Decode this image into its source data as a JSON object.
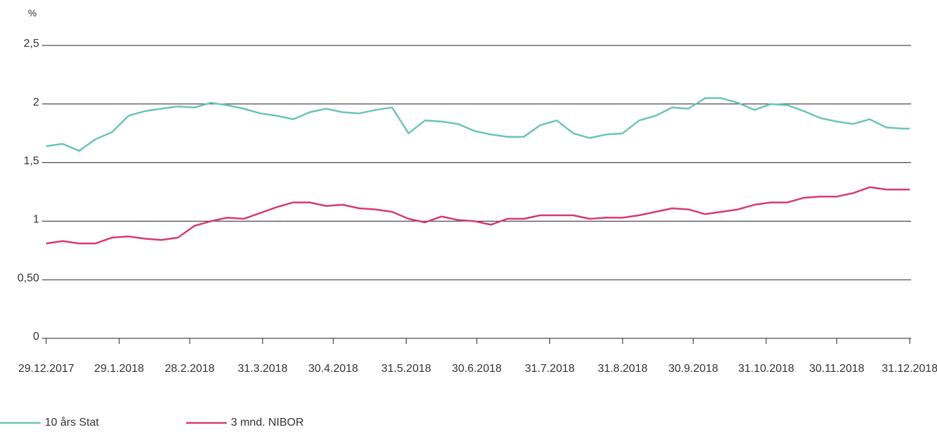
{
  "chart_data": {
    "type": "line",
    "ylabel": "%",
    "x": [
      "2017-12-29",
      "2018-01-05",
      "2018-01-12",
      "2018-01-19",
      "2018-01-26",
      "2018-02-02",
      "2018-02-09",
      "2018-02-16",
      "2018-02-23",
      "2018-03-02",
      "2018-03-09",
      "2018-03-16",
      "2018-03-23",
      "2018-03-30",
      "2018-04-06",
      "2018-04-13",
      "2018-04-20",
      "2018-04-27",
      "2018-05-04",
      "2018-05-11",
      "2018-05-18",
      "2018-05-25",
      "2018-06-01",
      "2018-06-08",
      "2018-06-15",
      "2018-06-22",
      "2018-06-29",
      "2018-07-06",
      "2018-07-13",
      "2018-07-20",
      "2018-07-27",
      "2018-08-03",
      "2018-08-10",
      "2018-08-17",
      "2018-08-24",
      "2018-08-31",
      "2018-09-07",
      "2018-09-14",
      "2018-09-21",
      "2018-09-28",
      "2018-10-05",
      "2018-10-12",
      "2018-10-19",
      "2018-10-26",
      "2018-11-02",
      "2018-11-09",
      "2018-11-16",
      "2018-11-23",
      "2018-11-30",
      "2018-12-07",
      "2018-12-14",
      "2018-12-21",
      "2018-12-28",
      "2018-12-31"
    ],
    "series": [
      {
        "name": "10 års Stat",
        "color": "#6cc4b7",
        "values": [
          1.64,
          1.66,
          1.6,
          1.7,
          1.76,
          1.9,
          1.94,
          1.96,
          1.98,
          1.97,
          2.01,
          1.99,
          1.96,
          1.92,
          1.9,
          1.87,
          1.93,
          1.96,
          1.93,
          1.92,
          1.95,
          1.97,
          1.75,
          1.86,
          1.85,
          1.83,
          1.77,
          1.74,
          1.72,
          1.72,
          1.82,
          1.86,
          1.75,
          1.71,
          1.74,
          1.75,
          1.86,
          1.9,
          1.97,
          1.96,
          2.05,
          2.05,
          2.01,
          1.95,
          2.0,
          1.99,
          1.94,
          1.88,
          1.85,
          1.83,
          1.87,
          1.8,
          1.79,
          1.79
        ]
      },
      {
        "name": "3 mnd. NIBOR",
        "color": "#d63a6e",
        "values": [
          0.81,
          0.83,
          0.81,
          0.81,
          0.86,
          0.87,
          0.85,
          0.84,
          0.86,
          0.96,
          1.0,
          1.03,
          1.02,
          1.07,
          1.12,
          1.16,
          1.16,
          1.13,
          1.14,
          1.11,
          1.1,
          1.08,
          1.02,
          0.99,
          1.04,
          1.01,
          1.0,
          0.97,
          1.02,
          1.02,
          1.05,
          1.05,
          1.05,
          1.02,
          1.03,
          1.03,
          1.05,
          1.08,
          1.11,
          1.1,
          1.06,
          1.08,
          1.1,
          1.14,
          1.16,
          1.16,
          1.2,
          1.21,
          1.21,
          1.24,
          1.29,
          1.27,
          1.27,
          1.27
        ]
      }
    ],
    "xlim": [
      "2017-12-29",
      "2018-12-31"
    ],
    "xticks": [
      {
        "value": "2017-12-29",
        "label": "29.12.2017"
      },
      {
        "value": "2018-01-29",
        "label": "29.1.2018"
      },
      {
        "value": "2018-02-28",
        "label": "28.2.2018"
      },
      {
        "value": "2018-03-31",
        "label": "31.3.2018"
      },
      {
        "value": "2018-04-30",
        "label": "30.4.2018"
      },
      {
        "value": "2018-05-31",
        "label": "31.5.2018"
      },
      {
        "value": "2018-06-30",
        "label": "30.6.2018"
      },
      {
        "value": "2018-07-31",
        "label": "31.7.2018"
      },
      {
        "value": "2018-08-31",
        "label": "31.8.2018"
      },
      {
        "value": "2018-09-30",
        "label": "30.9.2018"
      },
      {
        "value": "2018-10-31",
        "label": "31.10.2018"
      },
      {
        "value": "2018-11-30",
        "label": "30.11.2018"
      },
      {
        "value": "2018-12-31",
        "label": "31.12.2018"
      }
    ],
    "ylim": [
      0,
      2.5
    ],
    "yticks": [
      0,
      {
        "value": 0.5,
        "label": "0,50"
      },
      1,
      {
        "value": 1.5,
        "label": "1,5"
      },
      2,
      {
        "value": 2.5,
        "label": "2,5"
      }
    ],
    "grid": true,
    "legend": "bottom-left"
  }
}
